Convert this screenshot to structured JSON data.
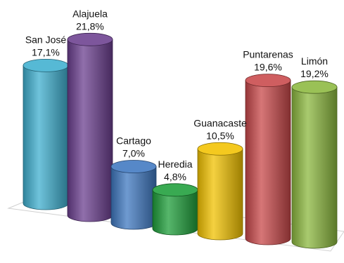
{
  "chart_data": {
    "type": "bar",
    "style": "3d-cylinder",
    "title": "",
    "xlabel": "",
    "ylabel": "",
    "grid": false,
    "legend": "none",
    "categories": [
      "San José",
      "Alajuela",
      "Cartago",
      "Heredia",
      "Guanacaste",
      "Puntarenas",
      "Limón"
    ],
    "values": [
      17.1,
      21.8,
      7.0,
      4.8,
      10.5,
      19.6,
      19.2
    ],
    "value_labels": [
      "17,1%",
      "21,8%",
      "7,0%",
      "4,8%",
      "10,5%",
      "19,6%",
      "19,2%"
    ],
    "colors": [
      "#3FAFCF",
      "#6B3F8F",
      "#3F78C0",
      "#1E9E3A",
      "#F2C200",
      "#C8484A",
      "#8CB83F"
    ]
  }
}
